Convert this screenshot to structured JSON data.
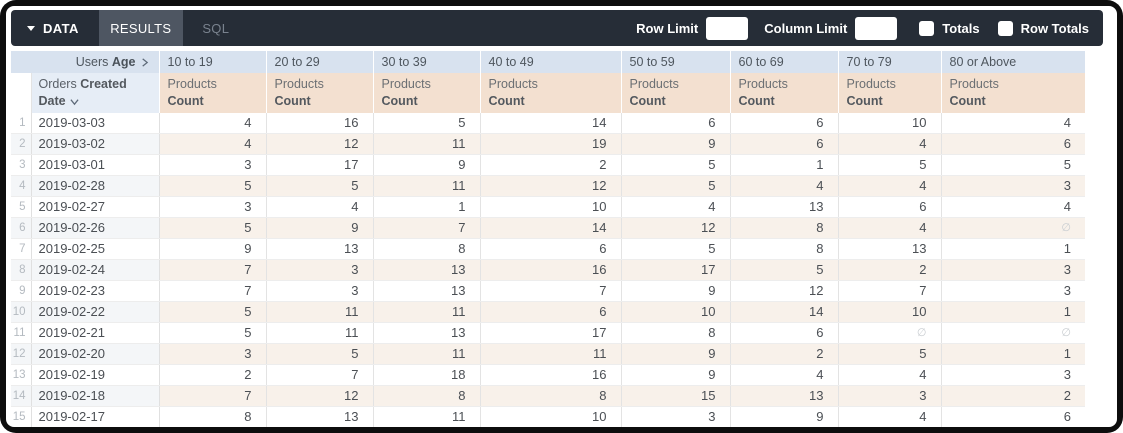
{
  "toolbar": {
    "data_label": "DATA",
    "results_label": "RESULTS",
    "sql_label": "SQL",
    "row_limit_label": "Row Limit",
    "row_limit_value": "",
    "column_limit_label": "Column Limit",
    "column_limit_value": "",
    "totals_label": "Totals",
    "totals_checked": false,
    "row_totals_label": "Row Totals",
    "row_totals_checked": false
  },
  "pivot": {
    "dimension_prefix": "Users",
    "dimension_name": "Age",
    "values": [
      "10 to 19",
      "20 to 29",
      "30 to 39",
      "40 to 49",
      "50 to 59",
      "60 to 69",
      "70 to 79",
      "80 or Above"
    ]
  },
  "row_dimension": {
    "prefix": "Orders",
    "name": "Created Date"
  },
  "measure": {
    "prefix": "Products",
    "name": "Count"
  },
  "null_symbol": "∅",
  "rows": [
    {
      "num": "1",
      "date": "2019-03-03",
      "values": [
        4,
        16,
        5,
        14,
        6,
        6,
        10,
        4
      ]
    },
    {
      "num": "2",
      "date": "2019-03-02",
      "values": [
        4,
        12,
        11,
        19,
        9,
        6,
        4,
        6
      ]
    },
    {
      "num": "3",
      "date": "2019-03-01",
      "values": [
        3,
        17,
        9,
        2,
        5,
        1,
        5,
        5
      ]
    },
    {
      "num": "4",
      "date": "2019-02-28",
      "values": [
        5,
        5,
        11,
        12,
        5,
        4,
        4,
        3
      ]
    },
    {
      "num": "5",
      "date": "2019-02-27",
      "values": [
        3,
        4,
        1,
        10,
        4,
        13,
        6,
        4
      ]
    },
    {
      "num": "6",
      "date": "2019-02-26",
      "values": [
        5,
        9,
        7,
        14,
        12,
        8,
        4,
        null
      ]
    },
    {
      "num": "7",
      "date": "2019-02-25",
      "values": [
        9,
        13,
        8,
        6,
        5,
        8,
        13,
        1
      ]
    },
    {
      "num": "8",
      "date": "2019-02-24",
      "values": [
        7,
        3,
        13,
        16,
        17,
        5,
        2,
        3
      ]
    },
    {
      "num": "9",
      "date": "2019-02-23",
      "values": [
        7,
        3,
        13,
        7,
        9,
        12,
        7,
        3
      ]
    },
    {
      "num": "10",
      "date": "2019-02-22",
      "values": [
        5,
        11,
        11,
        6,
        10,
        14,
        10,
        1
      ]
    },
    {
      "num": "11",
      "date": "2019-02-21",
      "values": [
        5,
        11,
        13,
        17,
        8,
        6,
        null,
        null
      ]
    },
    {
      "num": "12",
      "date": "2019-02-20",
      "values": [
        3,
        5,
        11,
        11,
        9,
        2,
        5,
        1
      ]
    },
    {
      "num": "13",
      "date": "2019-02-19",
      "values": [
        2,
        7,
        18,
        16,
        9,
        4,
        4,
        3
      ]
    },
    {
      "num": "14",
      "date": "2019-02-18",
      "values": [
        7,
        12,
        8,
        8,
        15,
        13,
        3,
        2
      ]
    },
    {
      "num": "15",
      "date": "2019-02-17",
      "values": [
        8,
        13,
        11,
        10,
        3,
        9,
        4,
        6
      ]
    }
  ],
  "colors": {
    "toolbar_bg": "#262d37",
    "active_tab_bg": "#4e5662",
    "pivot_header_bg": "#d8e2ef",
    "dimension_header_bg": "#e6edf6",
    "measure_header_bg": "#f3e0d0",
    "even_row_measure_bg": "#f8f1ea",
    "even_row_dimension_bg": "#f4f6f8"
  }
}
